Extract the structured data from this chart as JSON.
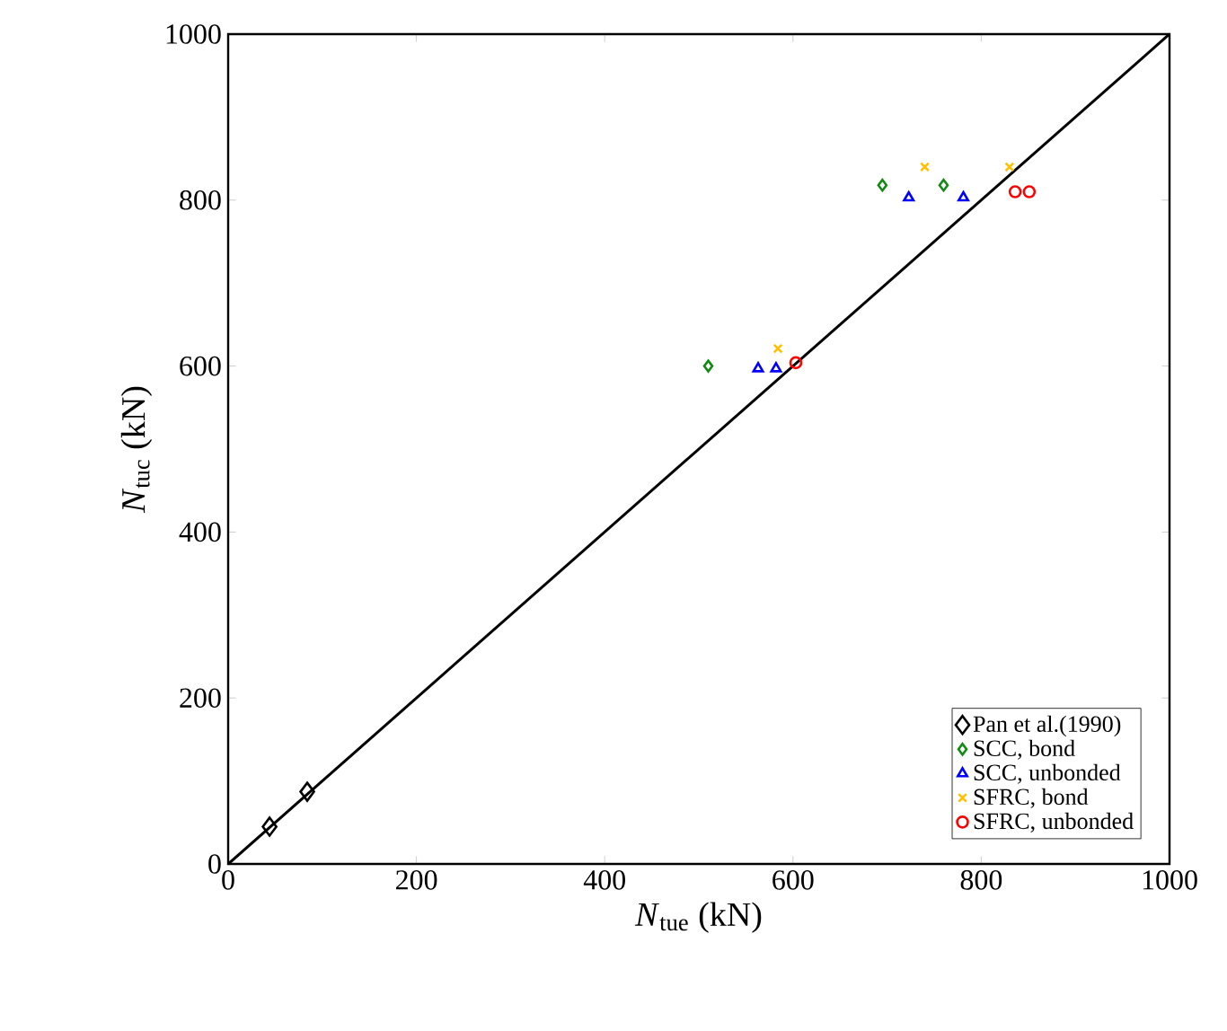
{
  "chart_data": {
    "type": "scatter",
    "xlabel": "*N*$_{tue}$ (kN)",
    "ylabel": "*N*$_{tuc}$ (kN)",
    "xlim": [
      0,
      1000
    ],
    "ylim": [
      0,
      1000
    ],
    "xticks": [
      0,
      200,
      400,
      600,
      800,
      1000
    ],
    "yticks": [
      0,
      200,
      400,
      600,
      800,
      1000
    ],
    "grid": false,
    "legend": "bottom right",
    "series": [
      {
        "name": "Pan et al.(1990)",
        "color": "#000000",
        "marker": "diamond",
        "x": [
          44,
          84
        ],
        "values": [
          45,
          87
        ]
      },
      {
        "name": "SCC, bond",
        "color": "#138a13",
        "marker": "diamond",
        "x": [
          510,
          695,
          760
        ],
        "values": [
          600,
          818,
          818
        ]
      },
      {
        "name": "SCC, unbonded",
        "color": "#0000ff",
        "marker": "triangle",
        "x": [
          563,
          582,
          723,
          781
        ],
        "values": [
          597,
          597,
          803,
          803
        ]
      },
      {
        "name": "SFRC, bond",
        "color": "#ffc000",
        "marker": "cross",
        "x": [
          584,
          740,
          830
        ],
        "values": [
          621,
          840,
          840
        ]
      },
      {
        "name": "SFRC, unbonded",
        "color": "#ff0000",
        "marker": "circle",
        "x": [
          603,
          836,
          851
        ],
        "values": [
          604,
          810,
          810
        ]
      },
      {
        "type": "line",
        "color": "#000000",
        "marker": "none",
        "x": [
          0,
          1000
        ],
        "values": [
          0,
          1000
        ]
      }
    ]
  }
}
